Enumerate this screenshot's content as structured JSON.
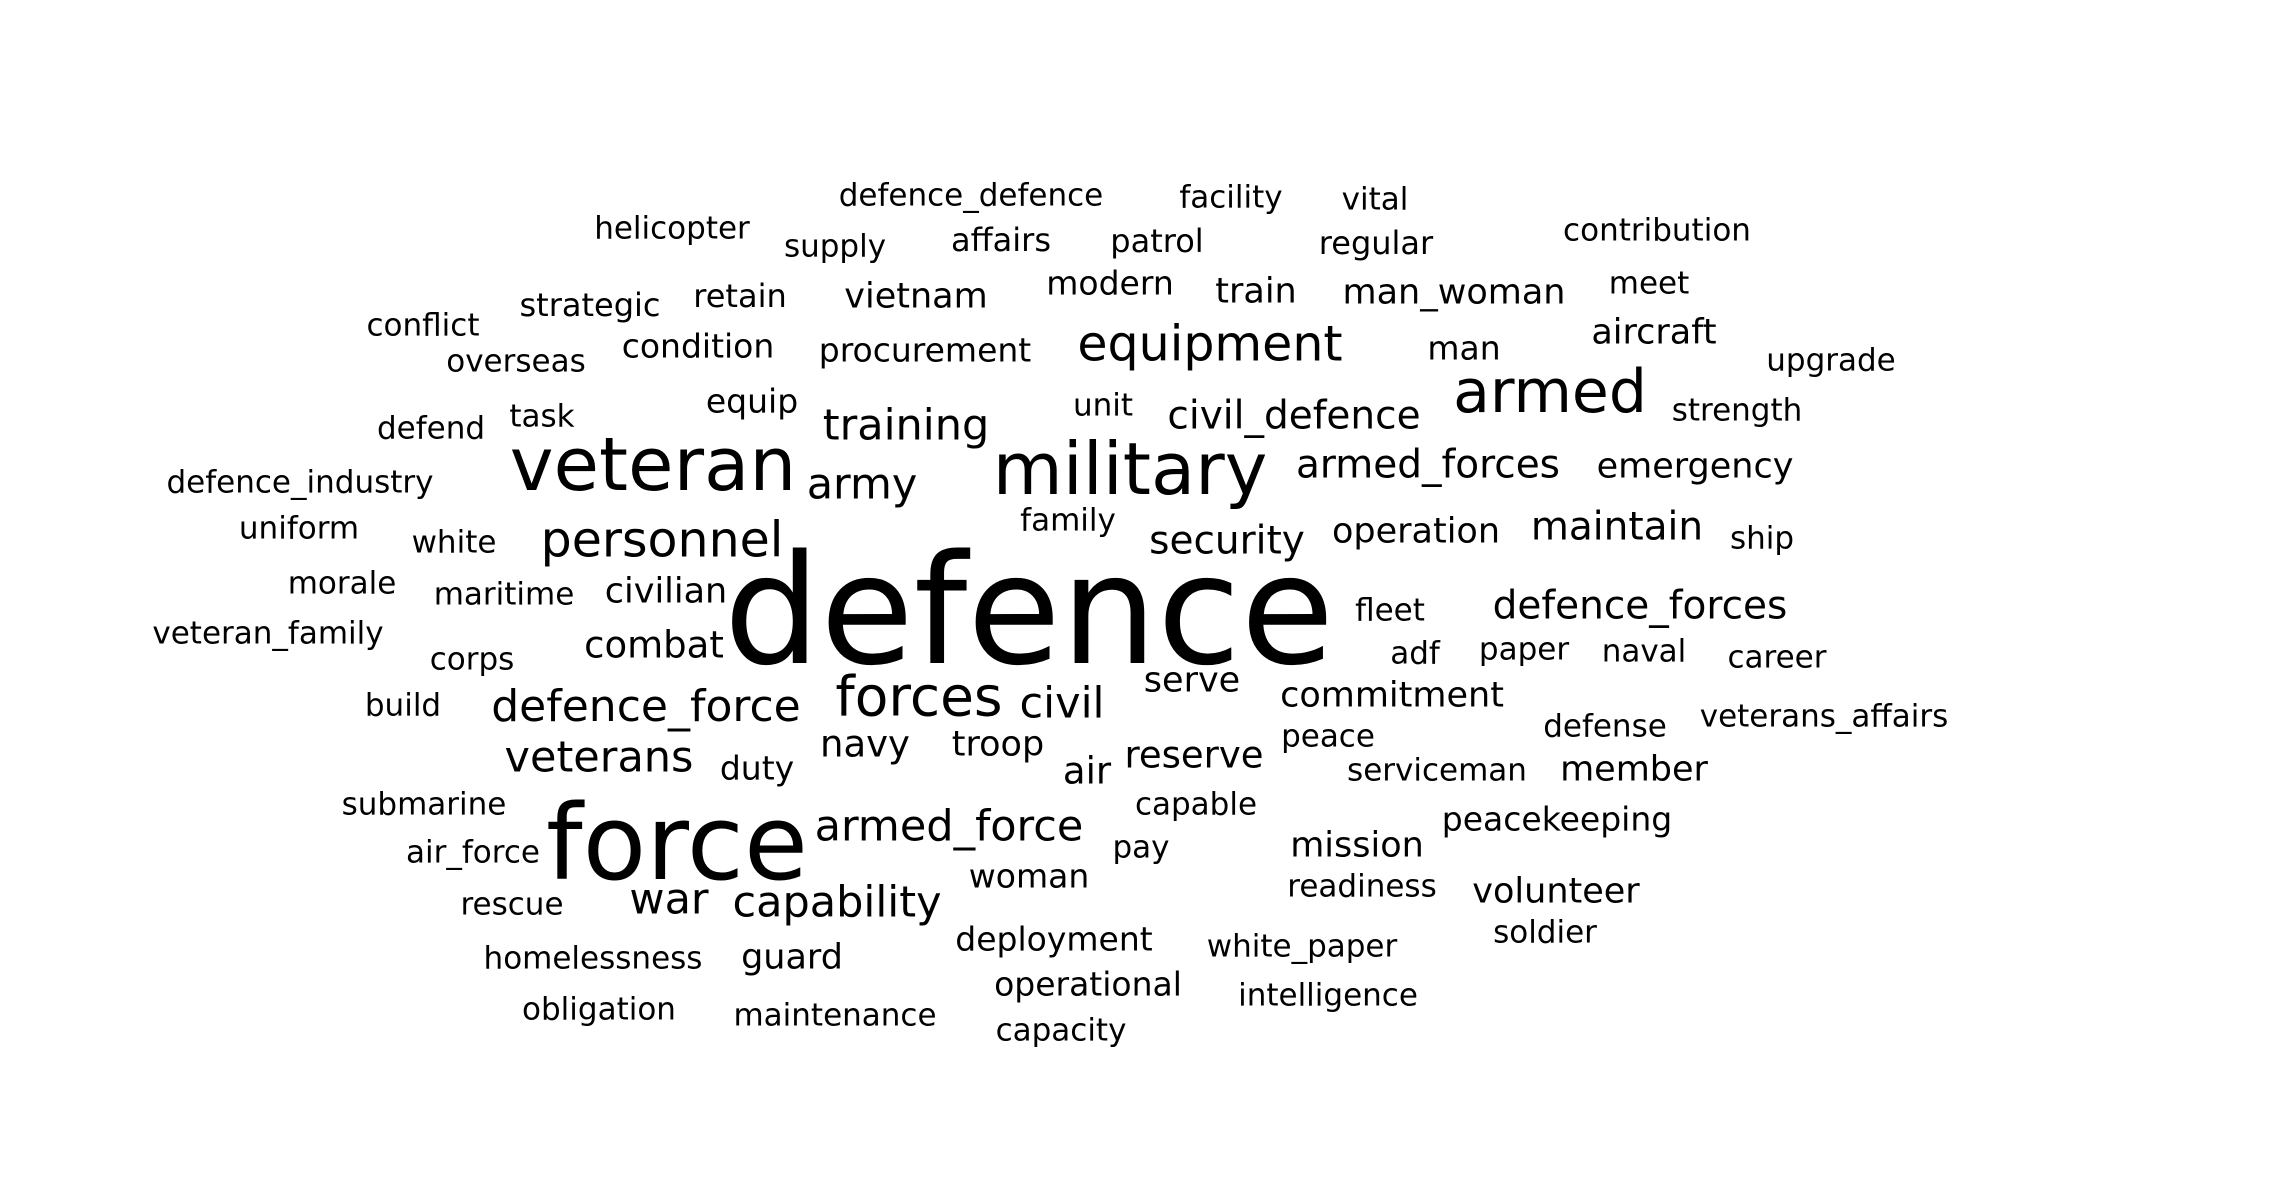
{
  "words": [
    {
      "text": "defence",
      "weight": 100
    },
    {
      "text": "force",
      "weight": 70
    },
    {
      "text": "military",
      "weight": 58
    },
    {
      "text": "veteran",
      "weight": 58
    },
    {
      "text": "armed",
      "weight": 50
    },
    {
      "text": "forces",
      "weight": 46
    },
    {
      "text": "equipment",
      "weight": 41
    },
    {
      "text": "personnel",
      "weight": 41
    },
    {
      "text": "training",
      "weight": 37
    },
    {
      "text": "army",
      "weight": 37
    },
    {
      "text": "defence_force",
      "weight": 37
    },
    {
      "text": "armed_force",
      "weight": 37
    },
    {
      "text": "veterans",
      "weight": 37
    },
    {
      "text": "capability",
      "weight": 37
    },
    {
      "text": "civil",
      "weight": 37
    },
    {
      "text": "war",
      "weight": 37
    },
    {
      "text": "civil_defence",
      "weight": 33
    },
    {
      "text": "armed_forces",
      "weight": 33
    },
    {
      "text": "security",
      "weight": 33
    },
    {
      "text": "maintain",
      "weight": 33
    },
    {
      "text": "defence_forces",
      "weight": 33
    },
    {
      "text": "combat",
      "weight": 31
    },
    {
      "text": "navy",
      "weight": 31
    },
    {
      "text": "reserve",
      "weight": 31
    },
    {
      "text": "air",
      "weight": 31
    },
    {
      "text": "guard",
      "weight": 30
    },
    {
      "text": "operation",
      "weight": 30
    },
    {
      "text": "emergency",
      "weight": 30
    },
    {
      "text": "civilian",
      "weight": 30
    },
    {
      "text": "troop",
      "weight": 29
    },
    {
      "text": "serve",
      "weight": 29
    },
    {
      "text": "commitment",
      "weight": 29
    },
    {
      "text": "member",
      "weight": 29
    },
    {
      "text": "mission",
      "weight": 29
    },
    {
      "text": "volunteer",
      "weight": 29
    },
    {
      "text": "vietnam",
      "weight": 29
    },
    {
      "text": "train",
      "weight": 29
    },
    {
      "text": "man_woman",
      "weight": 29
    },
    {
      "text": "aircraft",
      "weight": 29
    },
    {
      "text": "procurement",
      "weight": 28
    },
    {
      "text": "condition",
      "weight": 28
    },
    {
      "text": "equip",
      "weight": 28
    },
    {
      "text": "duty",
      "weight": 28
    },
    {
      "text": "woman",
      "weight": 28
    },
    {
      "text": "deployment",
      "weight": 28
    },
    {
      "text": "operational",
      "weight": 28
    },
    {
      "text": "peacekeeping",
      "weight": 28
    },
    {
      "text": "man",
      "weight": 28
    },
    {
      "text": "modern",
      "weight": 28
    },
    {
      "text": "retain",
      "weight": 27
    },
    {
      "text": "strategic",
      "weight": 27
    },
    {
      "text": "affairs",
      "weight": 27
    },
    {
      "text": "patrol",
      "weight": 27
    },
    {
      "text": "regular",
      "weight": 27
    },
    {
      "text": "contribution",
      "weight": 26
    },
    {
      "text": "defence_defence",
      "weight": 26
    },
    {
      "text": "facility",
      "weight": 26
    },
    {
      "text": "vital",
      "weight": 26
    },
    {
      "text": "helicopter",
      "weight": 26
    },
    {
      "text": "supply",
      "weight": 26
    },
    {
      "text": "meet",
      "weight": 26
    },
    {
      "text": "conflict",
      "weight": 26
    },
    {
      "text": "overseas",
      "weight": 26
    },
    {
      "text": "upgrade",
      "weight": 26
    },
    {
      "text": "strength",
      "weight": 26
    },
    {
      "text": "defend",
      "weight": 26
    },
    {
      "text": "task",
      "weight": 26
    },
    {
      "text": "unit",
      "weight": 26
    },
    {
      "text": "defence_industry",
      "weight": 26
    },
    {
      "text": "uniform",
      "weight": 26
    },
    {
      "text": "white",
      "weight": 26
    },
    {
      "text": "family",
      "weight": 26
    },
    {
      "text": "ship",
      "weight": 26
    },
    {
      "text": "morale",
      "weight": 26
    },
    {
      "text": "maritime",
      "weight": 26
    },
    {
      "text": "fleet",
      "weight": 26
    },
    {
      "text": "veteran_family",
      "weight": 26
    },
    {
      "text": "corps",
      "weight": 26
    },
    {
      "text": "adf",
      "weight": 26
    },
    {
      "text": "paper",
      "weight": 26
    },
    {
      "text": "naval",
      "weight": 26
    },
    {
      "text": "career",
      "weight": 26
    },
    {
      "text": "build",
      "weight": 26
    },
    {
      "text": "defense",
      "weight": 26
    },
    {
      "text": "veterans_affairs",
      "weight": 26
    },
    {
      "text": "peace",
      "weight": 26
    },
    {
      "text": "serviceman",
      "weight": 26
    },
    {
      "text": "submarine",
      "weight": 26
    },
    {
      "text": "capable",
      "weight": 26
    },
    {
      "text": "air_force",
      "weight": 26
    },
    {
      "text": "pay",
      "weight": 26
    },
    {
      "text": "readiness",
      "weight": 26
    },
    {
      "text": "rescue",
      "weight": 26
    },
    {
      "text": "soldier",
      "weight": 26
    },
    {
      "text": "homelessness",
      "weight": 26
    },
    {
      "text": "white_paper",
      "weight": 26
    },
    {
      "text": "obligation",
      "weight": 26
    },
    {
      "text": "maintenance",
      "weight": 26
    },
    {
      "text": "intelligence",
      "weight": 26
    },
    {
      "text": "capacity",
      "weight": 26
    }
  ]
}
